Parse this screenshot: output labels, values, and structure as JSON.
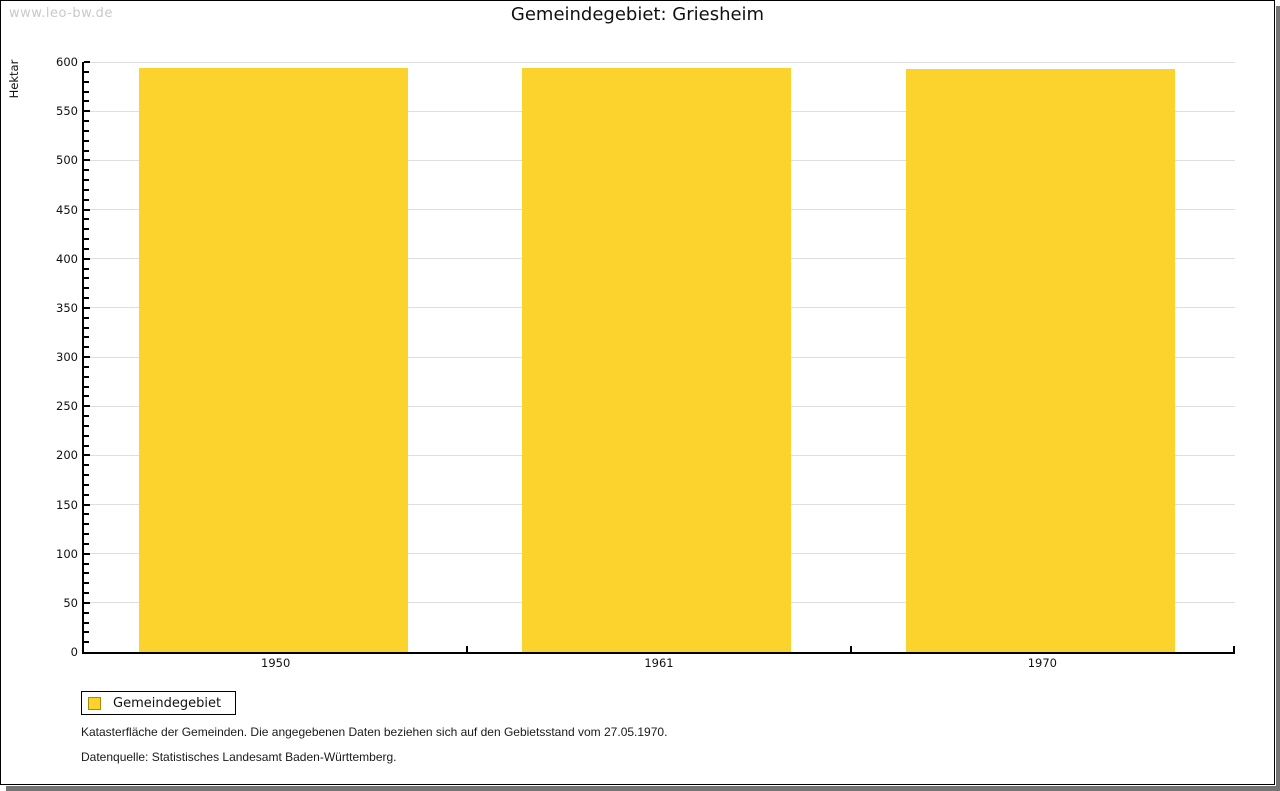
{
  "watermark": "www.leo-bw.de",
  "title": "Gemeindegebiet: Griesheim",
  "chart_data": {
    "type": "bar",
    "title": "Gemeindegebiet: Griesheim",
    "categories": [
      "1950",
      "1961",
      "1970"
    ],
    "series": [
      {
        "name": "Gemeindegebiet",
        "values": [
          594,
          594,
          593
        ]
      }
    ],
    "xlabel": "",
    "ylabel": "Hektar",
    "ylim": [
      0,
      600
    ],
    "ytick_step": 50,
    "yminor_step": 10,
    "grid": true,
    "legend_position": "bottom-left",
    "bar_color": "#fcd32d"
  },
  "legend": {
    "label": "Gemeindegebiet",
    "swatch_color": "#fcd32d",
    "swatch_border": "#a28e00"
  },
  "footer": {
    "line1": "Katasterfläche der Gemeinden. Die angegebenen Daten beziehen sich auf den Gebietsstand vom 27.05.1970.",
    "line2": "Datenquelle: Statistisches Landesamt Baden-Württemberg."
  },
  "colors": {
    "bar": "#fcd32d",
    "gridline": "#dedede",
    "axis": "#000000",
    "watermark": "#c9c9c9",
    "frame_shadow": "#757575"
  }
}
